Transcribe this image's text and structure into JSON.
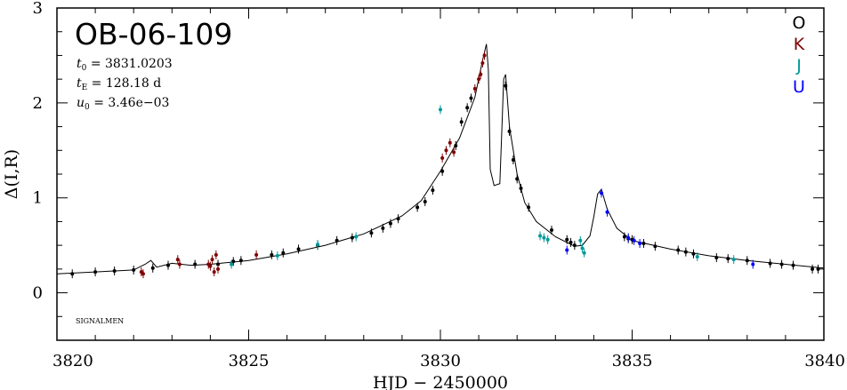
{
  "chart_data": {
    "type": "scatter",
    "title": "OB-06-109",
    "xlabel": "HJD − 2450000",
    "ylabel": "Δ(I,R)",
    "xlim": [
      3820,
      3840
    ],
    "ylim": [
      -0.5,
      3
    ],
    "x_ticks": [
      3820,
      3825,
      3830,
      3835,
      3840
    ],
    "y_ticks": [
      0,
      1,
      2,
      3
    ],
    "grid": false,
    "legend_position": "top-right",
    "parameters": [
      {
        "symbol": "t",
        "sub": "0",
        "text": " = 3831.0203"
      },
      {
        "symbol": "t",
        "sub": "E",
        "text": " = 128.18 d"
      },
      {
        "symbol": "u",
        "sub": "0",
        "text": " = 3.46e−03"
      }
    ],
    "credit": "SIGNALMEN",
    "model_curve": {
      "x": [
        3820.0,
        3821.0,
        3822.0,
        3822.3,
        3822.45,
        3822.6,
        3823.0,
        3823.5,
        3824.0,
        3825.0,
        3826.0,
        3827.0,
        3828.0,
        3829.0,
        3829.5,
        3830.0,
        3830.5,
        3830.9,
        3831.1,
        3831.2,
        3831.25,
        3831.3,
        3831.4,
        3831.55,
        3831.6,
        3831.65,
        3831.7,
        3831.8,
        3832.0,
        3832.2,
        3832.5,
        3833.0,
        3833.5,
        3833.7,
        3833.9,
        3834.0,
        3834.1,
        3834.2,
        3834.35,
        3834.6,
        3835.0,
        3836.0,
        3837.0,
        3838.0,
        3839.0,
        3840.0
      ],
      "y": [
        0.2,
        0.22,
        0.24,
        0.3,
        0.34,
        0.27,
        0.31,
        0.29,
        0.3,
        0.34,
        0.41,
        0.5,
        0.62,
        0.81,
        0.97,
        1.28,
        1.63,
        2.06,
        2.45,
        2.62,
        2.35,
        1.3,
        1.13,
        1.15,
        1.7,
        2.25,
        2.3,
        1.75,
        1.25,
        0.95,
        0.75,
        0.59,
        0.49,
        0.5,
        0.6,
        0.8,
        1.04,
        1.09,
        0.88,
        0.68,
        0.55,
        0.46,
        0.39,
        0.34,
        0.3,
        0.26
      ]
    },
    "series": [
      {
        "name": "O",
        "color": "#000000",
        "x": [
          3820.4,
          3821.0,
          3821.5,
          3822.0,
          3822.5,
          3822.9,
          3823.6,
          3824.2,
          3824.6,
          3824.8,
          3825.6,
          3825.9,
          3826.3,
          3826.8,
          3827.3,
          3827.7,
          3828.2,
          3828.5,
          3828.7,
          3828.9,
          3829.4,
          3829.6,
          3829.8,
          3830.05,
          3830.4,
          3830.55,
          3830.7,
          3830.8,
          3831.7,
          3831.8,
          3831.9,
          3832.0,
          3832.1,
          3832.3,
          3832.9,
          3833.3,
          3833.4,
          3833.5,
          3834.8,
          3834.9,
          3835.0,
          3835.3,
          3835.6,
          3836.2,
          3836.4,
          3836.6,
          3837.2,
          3837.5,
          3838.0,
          3838.6,
          3838.9,
          3839.2,
          3839.7,
          3839.85
        ],
        "y": [
          0.2,
          0.22,
          0.23,
          0.24,
          0.26,
          0.29,
          0.3,
          0.3,
          0.33,
          0.34,
          0.4,
          0.42,
          0.46,
          0.5,
          0.55,
          0.58,
          0.63,
          0.68,
          0.73,
          0.78,
          0.9,
          0.96,
          1.08,
          1.28,
          1.55,
          1.8,
          1.95,
          2.05,
          2.18,
          1.7,
          1.4,
          1.2,
          1.1,
          0.9,
          0.66,
          0.56,
          0.53,
          0.5,
          0.59,
          0.57,
          0.56,
          0.52,
          0.49,
          0.45,
          0.43,
          0.41,
          0.37,
          0.36,
          0.34,
          0.31,
          0.3,
          0.29,
          0.25,
          0.25
        ]
      },
      {
        "name": "K",
        "color": "#800000",
        "x": [
          3822.2,
          3822.25,
          3823.15,
          3823.2,
          3823.95,
          3824.0,
          3824.05,
          3824.1,
          3824.15,
          3824.2,
          3825.2,
          3830.05,
          3830.15,
          3830.25,
          3830.35,
          3830.9,
          3831.0,
          3831.05,
          3831.1,
          3831.15
        ],
        "y": [
          0.22,
          0.2,
          0.35,
          0.3,
          0.3,
          0.28,
          0.35,
          0.22,
          0.4,
          0.25,
          0.4,
          1.42,
          1.5,
          1.58,
          1.48,
          2.15,
          2.25,
          2.3,
          2.42,
          2.5
        ]
      },
      {
        "name": "J",
        "color": "#009999",
        "x": [
          3824.55,
          3825.75,
          3826.8,
          3827.8,
          3830.0,
          3832.6,
          3832.7,
          3832.8,
          3833.65,
          3833.7,
          3833.75,
          3836.7,
          3837.65
        ],
        "y": [
          0.3,
          0.39,
          0.51,
          0.59,
          1.93,
          0.6,
          0.58,
          0.56,
          0.55,
          0.47,
          0.42,
          0.38,
          0.35
        ]
      },
      {
        "name": "U",
        "color": "#0000ff",
        "x": [
          3833.3,
          3834.2,
          3834.35,
          3834.9,
          3835.05,
          3835.2,
          3838.15
        ],
        "y": [
          0.45,
          1.05,
          0.85,
          0.58,
          0.55,
          0.52,
          0.3
        ]
      }
    ]
  }
}
